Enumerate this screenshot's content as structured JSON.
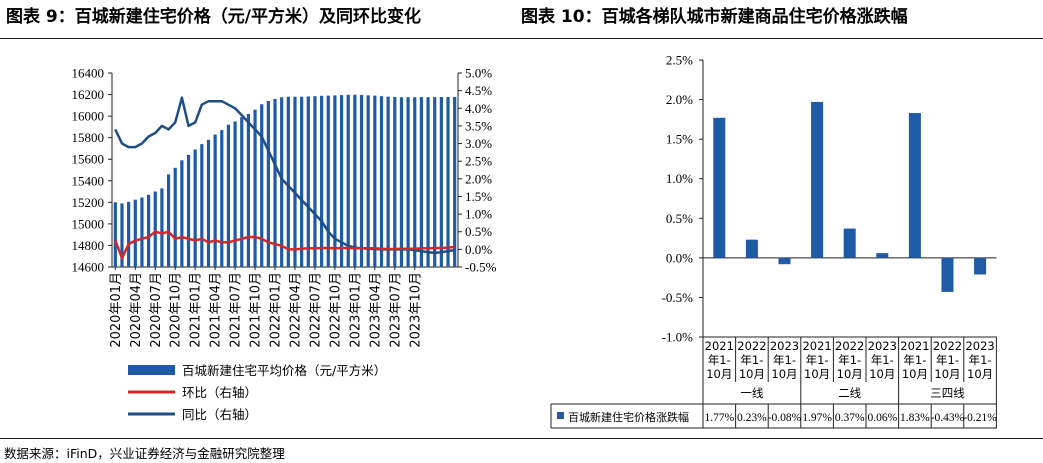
{
  "titles": {
    "left": "图表 9：百城新建住宅价格（元/平方米）及同环比变化",
    "right": "图表 10：百城各梯队城市新建商品住宅价格涨跌幅"
  },
  "source": "数据来源：iFinD，兴业证券经济与金融研究院整理",
  "colors": {
    "bar": "#1f5aa6",
    "hb": "#d62728",
    "tb": "#1f4e85"
  },
  "chart_data": [
    {
      "type": "bar+line",
      "x_tick_labels": [
        "2020年01月",
        "2020年04月",
        "2020年07月",
        "2020年10月",
        "2021年01月",
        "2021年04月",
        "2021年07月",
        "2021年10月",
        "2022年01月",
        "2022年04月",
        "2022年07月",
        "2022年10月",
        "2023年01月",
        "2023年04月",
        "2023年07月",
        "2023年10月"
      ],
      "x_tick_every": 3,
      "left_axis": {
        "ylim": [
          14600,
          16400
        ],
        "ticks": [
          "14600",
          "14800",
          "15000",
          "15200",
          "15400",
          "15600",
          "15800",
          "16000",
          "16200",
          "16400"
        ]
      },
      "right_axis": {
        "ylim": [
          -0.5,
          5.0
        ],
        "ticks": [
          "-0.5%",
          "0.0%",
          "0.5%",
          "1.0%",
          "1.5%",
          "2.0%",
          "2.5%",
          "3.0%",
          "3.5%",
          "4.0%",
          "4.5%",
          "5.0%"
        ]
      },
      "series": [
        {
          "name": "百城新建住宅平均价格（元/平方米）",
          "kind": "bar",
          "axis": "left",
          "values": [
            15200,
            15190,
            15205,
            15225,
            15245,
            15270,
            15300,
            15330,
            15460,
            15520,
            15590,
            15640,
            15690,
            15740,
            15780,
            15830,
            15870,
            15920,
            15950,
            15990,
            16020,
            16060,
            16110,
            16140,
            16160,
            16175,
            16180,
            16180,
            16180,
            16182,
            16185,
            16188,
            16190,
            16192,
            16195,
            16198,
            16198,
            16196,
            16193,
            16190,
            16185,
            16180,
            16178,
            16175,
            16175,
            16175,
            16176,
            16176,
            16176,
            16177,
            16177,
            16178
          ]
        },
        {
          "name": "环比（右轴）",
          "kind": "line",
          "axis": "right",
          "values": [
            0.25,
            -0.25,
            0.15,
            0.25,
            0.3,
            0.35,
            0.5,
            0.45,
            0.5,
            0.3,
            0.35,
            0.3,
            0.25,
            0.3,
            0.2,
            0.25,
            0.2,
            0.2,
            0.25,
            0.3,
            0.35,
            0.35,
            0.3,
            0.2,
            0.15,
            0.1,
            0.0,
            0.0,
            0.02,
            0.03,
            0.03,
            0.04,
            0.04,
            0.03,
            0.04,
            0.04,
            0.03,
            0.03,
            0.03,
            0.03,
            0.02,
            0.01,
            0.01,
            0.02,
            0.02,
            0.02,
            0.03,
            0.03,
            0.04,
            0.04,
            0.05,
            0.07
          ]
        },
        {
          "name": "同比（右轴）",
          "kind": "line",
          "axis": "right",
          "values": [
            3.4,
            3.0,
            2.9,
            2.9,
            3.0,
            3.2,
            3.3,
            3.5,
            3.4,
            3.6,
            4.3,
            3.5,
            3.6,
            4.1,
            4.2,
            4.2,
            4.2,
            4.1,
            4.0,
            3.8,
            3.6,
            3.4,
            3.2,
            2.8,
            2.4,
            2.0,
            1.8,
            1.6,
            1.4,
            1.2,
            1.0,
            0.8,
            0.5,
            0.3,
            0.2,
            0.1,
            0.05,
            0.03,
            0.02,
            0.01,
            0.0,
            0.0,
            0.0,
            0.0,
            0.0,
            -0.02,
            -0.05,
            -0.08,
            -0.1,
            -0.08,
            -0.05,
            -0.02
          ]
        }
      ]
    },
    {
      "type": "bar",
      "title": "",
      "ylim": [
        -1.0,
        2.5
      ],
      "y_ticks": [
        "-1.0%",
        "-0.5%",
        "0.0%",
        "0.5%",
        "1.0%",
        "1.5%",
        "2.0%",
        "2.5%"
      ],
      "categories": [
        "2021年1-10月",
        "2022年1-10月",
        "2023年1-10月",
        "2021年1-10月",
        "2022年1-10月",
        "2023年1-10月",
        "2021年1-10月",
        "2022年1-10月",
        "2023年1-10月"
      ],
      "category_lines": [
        [
          "2021",
          "年1-",
          "10月"
        ],
        [
          "2022",
          "年1-",
          "10月"
        ],
        [
          "2023",
          "年1-",
          "10月"
        ],
        [
          "2021",
          "年1-",
          "10月"
        ],
        [
          "2022",
          "年1-",
          "10月"
        ],
        [
          "2023",
          "年1-",
          "10月"
        ],
        [
          "2021",
          "年1-",
          "10月"
        ],
        [
          "2022",
          "年1-",
          "10月"
        ],
        [
          "2023",
          "年1-",
          "10月"
        ]
      ],
      "groups": [
        "一线",
        "二线",
        "三四线"
      ],
      "series": [
        {
          "name": "百城新建住宅价格涨跌幅",
          "values": [
            1.77,
            0.23,
            -0.08,
            1.97,
            0.37,
            0.06,
            1.83,
            -0.43,
            -0.21
          ],
          "labels": [
            "1.77%",
            "0.23%",
            "-0.08%",
            "1.97%",
            "0.37%",
            "0.06%",
            "1.83%",
            "-0.43%",
            "-0.21%"
          ]
        }
      ]
    }
  ]
}
